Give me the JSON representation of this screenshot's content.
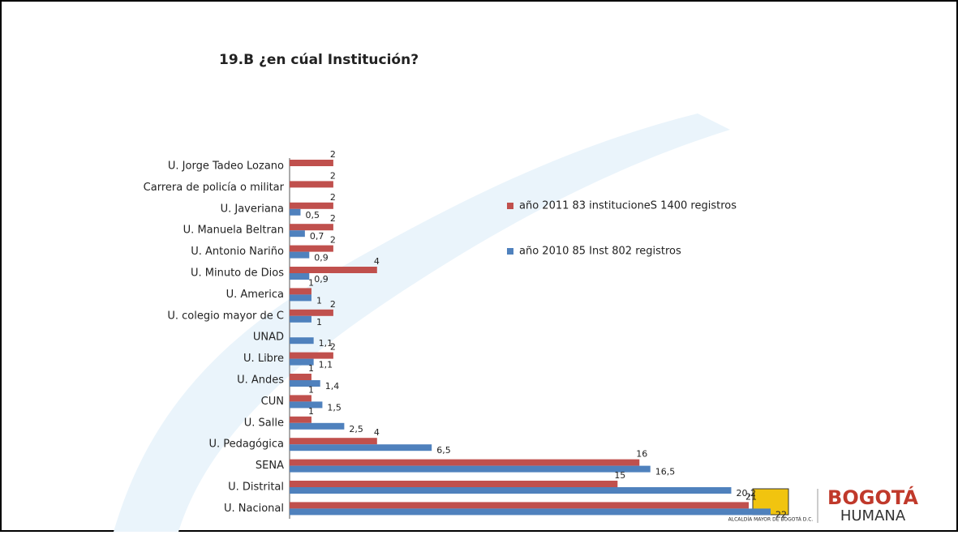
{
  "chart_data": {
    "type": "hbar",
    "title": "19.B ¿en cúal Institución?",
    "categories": [
      "U. Jorge Tadeo Lozano",
      "Carrera de policía o militar",
      "U. Javeriana",
      "U. Manuela Beltran",
      "U. Antonio Nariño",
      "U. Minuto de Dios",
      "U. America",
      "U. colegio mayor de C",
      "UNAD",
      "U. Libre",
      "U. Andes",
      "CUN",
      "U. Salle",
      "U. Pedagógica",
      "SENA",
      "U. Distrital",
      "U. Nacional"
    ],
    "series": [
      {
        "name": "año 2011 83 institucioneS 1400 registros",
        "color": "#c0504d",
        "values": [
          2,
          2,
          2,
          2,
          2,
          4,
          1,
          2,
          null,
          2,
          1,
          1,
          1,
          4,
          16,
          15,
          21
        ]
      },
      {
        "name": "año 2010 85 Inst 802 registros",
        "color": "#4f81bd",
        "values": [
          null,
          null,
          0.5,
          0.7,
          0.9,
          0.9,
          1,
          1,
          1.1,
          1.1,
          1.4,
          1.5,
          2.5,
          6.5,
          16.5,
          20.2,
          22
        ],
        "value_labels": [
          null,
          null,
          "0,5",
          "0,7",
          "0,9",
          "0,9",
          "1",
          "1",
          "1,1",
          "1,1",
          "1,4",
          "1,5",
          "2,5",
          "6,5",
          "16,5",
          "20,2",
          "22"
        ]
      }
    ],
    "legend": "right"
  },
  "footer": {
    "alcaldia": "ALCALDÍA MAYOR DE BOGOTÁ D.C.",
    "brand_top": "BOGOTÁ",
    "brand_bottom": "HUMANA"
  }
}
